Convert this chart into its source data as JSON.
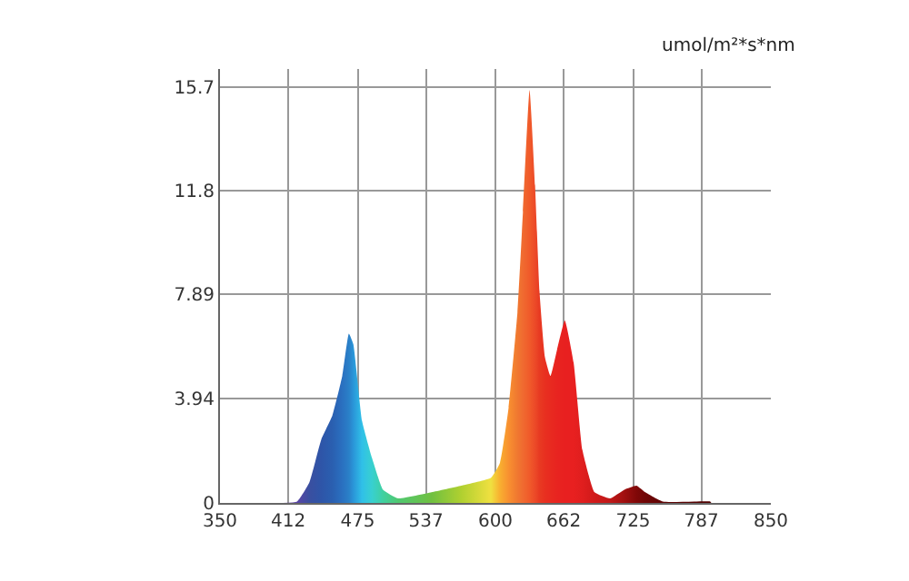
{
  "chart_data": {
    "type": "area",
    "ylabel": "umol/m²*s*nm",
    "x": [
      407,
      420,
      431,
      442,
      452,
      461,
      467,
      471,
      479,
      488,
      498,
      512,
      542,
      569,
      596,
      604,
      612,
      620,
      625,
      631,
      636,
      640,
      645,
      650,
      656,
      663,
      671,
      679,
      690,
      704,
      717,
      728,
      736,
      752,
      795,
      796
    ],
    "values": [
      0,
      0.05,
      0.76,
      2.4,
      3.3,
      4.8,
      6.4,
      6.0,
      3.1,
      1.7,
      0.5,
      0.17,
      0.4,
      0.65,
      0.95,
      1.5,
      3.6,
      7.2,
      11,
      15.6,
      12,
      8,
      5.5,
      4.8,
      5.8,
      6.9,
      5.3,
      2.0,
      0.4,
      0.17,
      0.5,
      0.65,
      0.4,
      0.05,
      0.05,
      0
    ],
    "colors": [
      "#6a3fa0",
      "#5a45a5",
      "#3a4fa0",
      "#2e55a8",
      "#2a5fb0",
      "#2a70c0",
      "#2a80c8",
      "#2a95d8",
      "#30c0e8",
      "#38d0d0",
      "#40d0a0",
      "#50c870",
      "#70c040",
      "#b0d030",
      "#f0e040",
      "#f8b030",
      "#f89030",
      "#f07830",
      "#f06a30",
      "#f05a2a",
      "#ec4a28",
      "#e83a22",
      "#e83020",
      "#e82a20",
      "#e82420",
      "#e82020",
      "#e82020",
      "#e01e1e",
      "#d01a1a",
      "#c01818",
      "#a01010",
      "#800808",
      "#700606",
      "#600404",
      "#500000",
      "#500000"
    ],
    "xlim": [
      350,
      850
    ],
    "xticks": [
      350,
      412,
      475,
      537,
      600,
      662,
      725,
      787,
      850
    ],
    "ylim": [
      0,
      16.4
    ],
    "yticks": [
      0,
      3.94,
      7.89,
      11.8,
      15.7
    ],
    "grid": true
  }
}
